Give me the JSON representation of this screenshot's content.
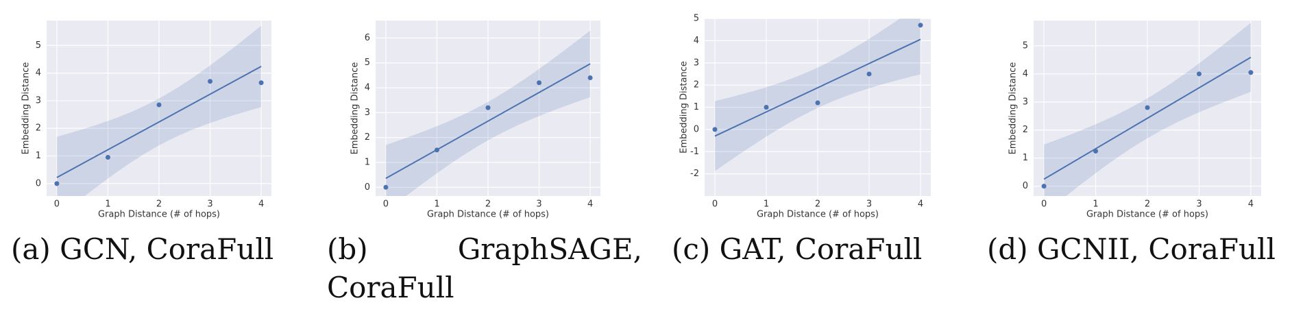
{
  "chart_data": [
    {
      "type": "scatter",
      "caption": "(a) GCN, CoraFull",
      "x_label": "Graph Distance (# of hops)",
      "y_label": "Embedding Distance",
      "x": [
        0,
        1,
        2,
        3,
        4
      ],
      "y": [
        0,
        0.95,
        2.85,
        3.7,
        3.65
      ],
      "xlim": [
        -0.2,
        4.2
      ],
      "ylim": [
        -0.45,
        5.9
      ],
      "xticks": [
        0,
        1,
        2,
        3,
        4
      ],
      "yticks": [
        0,
        1,
        2,
        3,
        4,
        5
      ],
      "color": "#4c72b0",
      "regression": true,
      "grid": true
    },
    {
      "type": "scatter",
      "caption": "(b) GraphSAGE, CoraFull",
      "x_label": "Graph Distance (# of hops)",
      "y_label": "Embedding Distance",
      "x": [
        0,
        1,
        2,
        3,
        4
      ],
      "y": [
        0,
        1.5,
        3.2,
        4.2,
        4.4
      ],
      "xlim": [
        -0.2,
        4.2
      ],
      "ylim": [
        -0.35,
        6.7
      ],
      "xticks": [
        0,
        1,
        2,
        3,
        4
      ],
      "yticks": [
        0,
        1,
        2,
        3,
        4,
        5,
        6
      ],
      "color": "#4c72b0",
      "regression": true,
      "grid": true
    },
    {
      "type": "scatter",
      "caption": "(c) GAT, CoraFull",
      "x_label": "Graph Distance (# of hops)",
      "y_label": "Embedding Distance",
      "x": [
        0,
        1,
        2,
        3,
        4
      ],
      "y": [
        0,
        1.0,
        1.2,
        2.5,
        4.7
      ],
      "xlim": [
        -0.2,
        4.2
      ],
      "ylim": [
        -3,
        5
      ],
      "xticks": [
        0,
        1,
        2,
        3,
        4
      ],
      "yticks": [
        -2,
        -1,
        0,
        1,
        2,
        3,
        4,
        5
      ],
      "color": "#4c72b0",
      "regression": true,
      "grid": true
    },
    {
      "type": "scatter",
      "caption": "(d) GCNII, CoraFull",
      "x_label": "Graph Distance (# of hops)",
      "y_label": "Embedding Distance",
      "x": [
        0,
        1,
        2,
        3,
        4
      ],
      "y": [
        0,
        1.25,
        2.8,
        4.0,
        4.05
      ],
      "xlim": [
        -0.2,
        4.2
      ],
      "ylim": [
        -0.35,
        5.9
      ],
      "xticks": [
        0,
        1,
        2,
        3,
        4
      ],
      "yticks": [
        0,
        1,
        2,
        3,
        4,
        5
      ],
      "color": "#4c72b0",
      "regression": true,
      "grid": true
    }
  ]
}
